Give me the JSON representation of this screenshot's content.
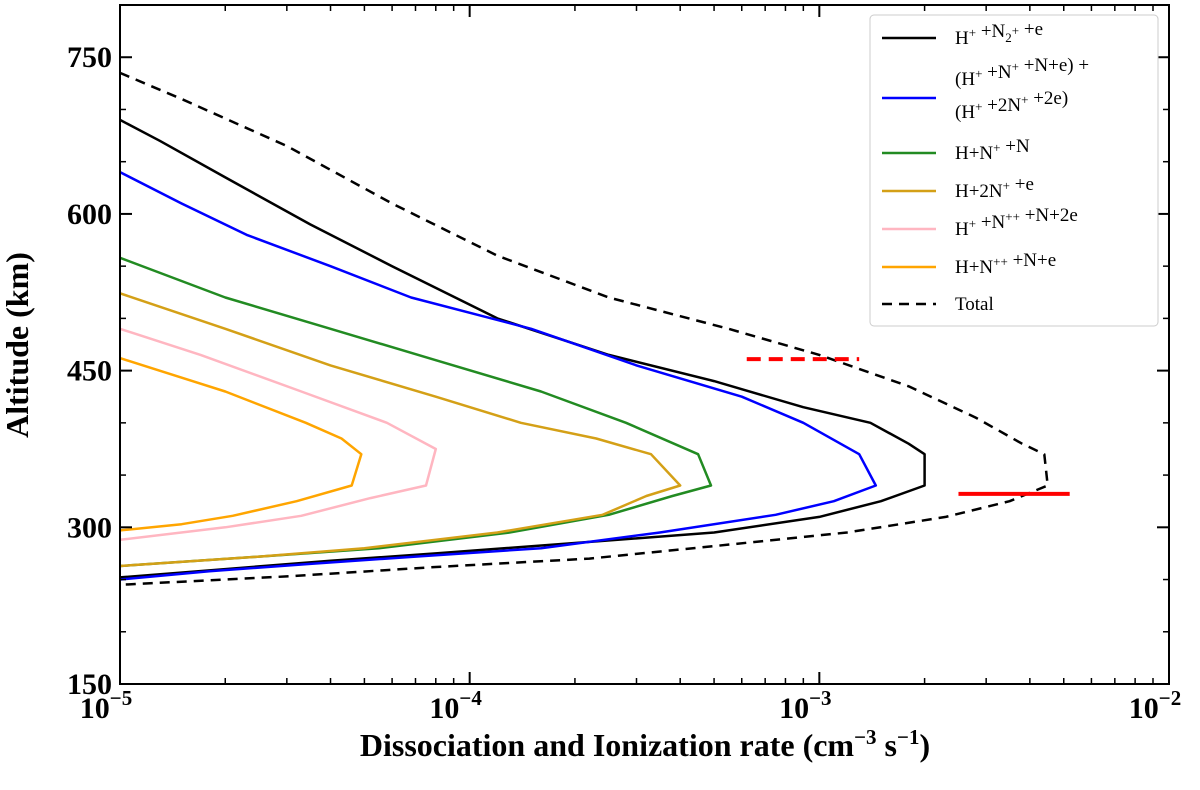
{
  "chart_data": {
    "type": "line",
    "title": "",
    "xlabel": "Dissociation and Ionization rate (cm",
    "xlabel_exp1": "−3",
    "xlabel_mid": " s",
    "xlabel_exp2": "−1",
    "xlabel_end": ")",
    "ylabel": "Altitude (km)",
    "xscale": "log",
    "xlim": [
      1e-05,
      0.01
    ],
    "ylim": [
      150,
      800
    ],
    "x_ticks": [
      {
        "value": 1e-05,
        "base": "10",
        "exp": "−5"
      },
      {
        "value": 0.0001,
        "base": "10",
        "exp": "−4"
      },
      {
        "value": 0.001,
        "base": "10",
        "exp": "−3"
      },
      {
        "value": 0.01,
        "base": "10",
        "exp": "−2"
      }
    ],
    "y_ticks": [
      150,
      300,
      450,
      600,
      750
    ],
    "y_minor_step": 50,
    "legend_position": "top-right",
    "series": [
      {
        "name_parts": [
          [
            "H",
            ""
          ],
          [
            "+",
            "sup"
          ],
          [
            " +N",
            ""
          ],
          [
            "2",
            "sub"
          ],
          [
            "+",
            "sup"
          ],
          [
            " +e",
            ""
          ]
        ],
        "color": "#000000",
        "dash": false,
        "points": [
          [
            1e-05,
            690
          ],
          [
            1.3e-05,
            670
          ],
          [
            2e-05,
            635
          ],
          [
            3.5e-05,
            590
          ],
          [
            6e-05,
            550
          ],
          [
            0.00012,
            500
          ],
          [
            0.00025,
            465
          ],
          [
            0.0005,
            440
          ],
          [
            0.0009,
            415
          ],
          [
            0.0014,
            400
          ],
          [
            0.0018,
            380
          ],
          [
            0.002,
            370
          ],
          [
            0.002,
            340
          ],
          [
            0.0015,
            325
          ],
          [
            0.001,
            310
          ],
          [
            0.0005,
            295
          ],
          [
            0.0002,
            285
          ],
          [
            8e-05,
            275
          ],
          [
            4e-05,
            268
          ],
          [
            2e-05,
            260
          ],
          [
            1e-05,
            252
          ]
        ]
      },
      {
        "name_parts": [
          [
            "(H",
            ""
          ],
          [
            "+",
            "sup"
          ],
          [
            " +N",
            ""
          ],
          [
            "+",
            "sup"
          ],
          [
            " +N+e) +",
            ""
          ]
        ],
        "name_parts2": [
          [
            "(H",
            ""
          ],
          [
            "+",
            "sup"
          ],
          [
            " +2N",
            ""
          ],
          [
            "+",
            "sup"
          ],
          [
            " +2e)",
            ""
          ]
        ],
        "color": "#0000ff",
        "dash": false,
        "points": [
          [
            1e-05,
            640
          ],
          [
            1.5e-05,
            610
          ],
          [
            2.3e-05,
            580
          ],
          [
            4e-05,
            550
          ],
          [
            6.8e-05,
            520
          ],
          [
            0.00015,
            490
          ],
          [
            0.0003,
            455
          ],
          [
            0.0006,
            425
          ],
          [
            0.0009,
            400
          ],
          [
            0.0013,
            370
          ],
          [
            0.00145,
            340
          ],
          [
            0.0011,
            325
          ],
          [
            0.00075,
            312
          ],
          [
            0.00035,
            295
          ],
          [
            0.00016,
            280
          ],
          [
            7e-05,
            272
          ],
          [
            3.5e-05,
            265
          ],
          [
            1.8e-05,
            258
          ],
          [
            1e-05,
            250
          ]
        ]
      },
      {
        "name_parts": [
          [
            "H+N",
            ""
          ],
          [
            "+",
            "sup"
          ],
          [
            " +N",
            ""
          ]
        ],
        "color": "#228b22",
        "dash": false,
        "points": [
          [
            1e-05,
            558
          ],
          [
            2e-05,
            520
          ],
          [
            4e-05,
            490
          ],
          [
            8e-05,
            460
          ],
          [
            0.00016,
            430
          ],
          [
            0.00028,
            400
          ],
          [
            0.00045,
            370
          ],
          [
            0.00049,
            340
          ],
          [
            0.00038,
            330
          ],
          [
            0.00025,
            312
          ],
          [
            0.00013,
            295
          ],
          [
            5.5e-05,
            280
          ],
          [
            2.5e-05,
            272
          ],
          [
            1e-05,
            263
          ]
        ]
      },
      {
        "name_parts": [
          [
            "H+2N",
            ""
          ],
          [
            "+",
            "sup"
          ],
          [
            " +e",
            ""
          ]
        ],
        "color": "#d4a017",
        "dash": false,
        "points": [
          [
            1e-05,
            524
          ],
          [
            2e-05,
            490
          ],
          [
            4e-05,
            455
          ],
          [
            8e-05,
            425
          ],
          [
            0.00014,
            400
          ],
          [
            0.00023,
            385
          ],
          [
            0.00033,
            370
          ],
          [
            0.0004,
            340
          ],
          [
            0.00032,
            330
          ],
          [
            0.00024,
            312
          ],
          [
            0.00012,
            295
          ],
          [
            5e-05,
            280
          ],
          [
            2.5e-05,
            272
          ],
          [
            1e-05,
            263
          ]
        ]
      },
      {
        "name_parts": [
          [
            "H",
            ""
          ],
          [
            "+",
            "sup"
          ],
          [
            " +N",
            ""
          ],
          [
            "++",
            "sup"
          ],
          [
            " +N+2e",
            ""
          ]
        ],
        "color": "#ffb6c1",
        "dash": false,
        "points": [
          [
            1e-05,
            490
          ],
          [
            1.7e-05,
            465
          ],
          [
            3.3e-05,
            430
          ],
          [
            5.8e-05,
            400
          ],
          [
            8e-05,
            375
          ],
          [
            7.5e-05,
            340
          ],
          [
            5.2e-05,
            328
          ],
          [
            3.3e-05,
            311
          ],
          [
            2e-05,
            300
          ],
          [
            1e-05,
            288
          ]
        ]
      },
      {
        "name_parts": [
          [
            "H+N",
            ""
          ],
          [
            "++",
            "sup"
          ],
          [
            " +N+e",
            ""
          ]
        ],
        "color": "#ffa500",
        "dash": false,
        "points": [
          [
            1e-05,
            462
          ],
          [
            2e-05,
            430
          ],
          [
            3.4e-05,
            400
          ],
          [
            4.3e-05,
            385
          ],
          [
            4.9e-05,
            370
          ],
          [
            4.6e-05,
            340
          ],
          [
            3.2e-05,
            325
          ],
          [
            2.1e-05,
            311
          ],
          [
            1.5e-05,
            303
          ],
          [
            1e-05,
            297
          ]
        ]
      },
      {
        "name_parts": [
          [
            "Total",
            ""
          ]
        ],
        "color": "#000000",
        "dash": true,
        "points": [
          [
            1e-05,
            735
          ],
          [
            1.5e-05,
            710
          ],
          [
            3e-05,
            665
          ],
          [
            6e-05,
            610
          ],
          [
            0.00012,
            560
          ],
          [
            0.00025,
            520
          ],
          [
            0.00055,
            490
          ],
          [
            0.001,
            465
          ],
          [
            0.0018,
            435
          ],
          [
            0.0028,
            405
          ],
          [
            0.0038,
            380
          ],
          [
            0.0044,
            370
          ],
          [
            0.0045,
            340
          ],
          [
            0.0035,
            325
          ],
          [
            0.0023,
            310
          ],
          [
            0.0012,
            295
          ],
          [
            0.0005,
            282
          ],
          [
            0.00022,
            270
          ],
          [
            8e-05,
            262
          ],
          [
            3e-05,
            253
          ],
          [
            1e-05,
            245
          ]
        ]
      }
    ],
    "markers": [
      {
        "x0": 0.00062,
        "x1": 0.0013,
        "y": 461,
        "color": "#ff0000",
        "dash": true
      },
      {
        "x0": 0.0025,
        "x1": 0.0052,
        "y": 332,
        "color": "#ff0000",
        "dash": false
      }
    ]
  }
}
